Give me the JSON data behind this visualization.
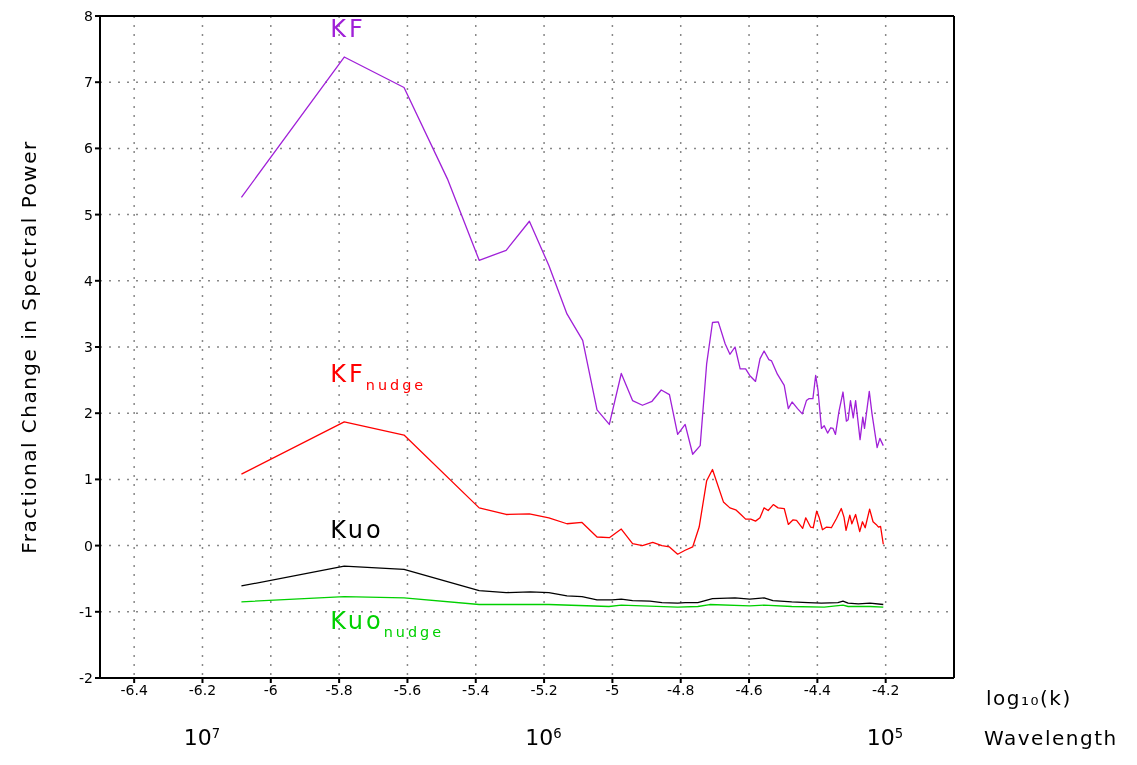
{
  "chart_data": {
    "type": "line",
    "ylabel": "Fractional Change in Spectral Power",
    "xlabel": "log₁₀(k)",
    "x2label": "Wavelength",
    "xlim": [
      -6.5,
      -4.0
    ],
    "xticks": [
      -6.4,
      -6.2,
      -6,
      -5.8,
      -5.6,
      -5.4,
      -5.2,
      -5,
      -4.8,
      -4.6,
      -4.4,
      -4.2
    ],
    "x2lim": [
      19870000,
      62830
    ],
    "x2ticks": [
      {
        "value": 10000000,
        "label": "10$^{7}$"
      },
      {
        "value": 1000000,
        "label": "10$^{6}$"
      },
      {
        "value": 100000,
        "label": "10$^{5}$"
      }
    ],
    "log": "x2",
    "ylim": [
      -2,
      8
    ],
    "yticks": [
      -2,
      -1,
      0,
      1,
      2,
      3,
      4,
      5,
      6,
      7,
      8
    ],
    "grid": true,
    "series": [
      {
        "name": "KF",
        "color": "#a020d8",
        "x": [
          -6.086,
          -5.785,
          -5.61,
          -5.483,
          -5.39,
          -5.311,
          -5.243,
          -5.186,
          -5.133,
          -5.087,
          -5.045,
          -5.009,
          -4.974,
          -4.941,
          -4.912,
          -4.884,
          -4.857,
          -4.833,
          -4.809,
          -4.787,
          -4.765,
          -4.743,
          -4.724,
          -4.707,
          -4.69,
          -4.67,
          -4.656,
          -4.641,
          -4.626,
          -4.61,
          -4.598,
          -4.581,
          -4.568,
          -4.556,
          -4.542,
          -4.534,
          -4.517,
          -4.497,
          -4.485,
          -4.474,
          -4.458,
          -4.444,
          -4.432,
          -4.425,
          -4.413,
          -4.405,
          -4.398,
          -4.388,
          -4.38,
          -4.37,
          -4.361,
          -4.354,
          -4.347,
          -4.337,
          -4.325,
          -4.315,
          -4.31,
          -4.303,
          -4.295,
          -4.288,
          -4.275,
          -4.267,
          -4.262,
          -4.248,
          -4.24,
          -4.225,
          -4.217,
          -4.207
        ],
        "values": [
          5.26,
          7.38,
          6.92,
          5.54,
          4.31,
          4.46,
          4.9,
          4.23,
          3.5,
          3.1,
          2.05,
          1.83,
          2.6,
          2.19,
          2.12,
          2.18,
          2.35,
          2.28,
          1.68,
          1.83,
          1.38,
          1.51,
          2.75,
          3.37,
          3.38,
          3.05,
          2.89,
          3.0,
          2.67,
          2.67,
          2.57,
          2.48,
          2.82,
          2.94,
          2.81,
          2.79,
          2.59,
          2.42,
          2.07,
          2.17,
          2.07,
          1.99,
          2.19,
          2.22,
          2.22,
          2.57,
          2.34,
          1.77,
          1.81,
          1.7,
          1.78,
          1.77,
          1.68,
          2.02,
          2.32,
          1.88,
          1.9,
          2.19,
          1.93,
          2.19,
          1.6,
          1.94,
          1.77,
          2.33,
          1.99,
          1.48,
          1.62,
          1.51
        ]
      },
      {
        "name": "KF$_{nudge}$",
        "color": "#ff0000",
        "x": [
          -6.086,
          -5.785,
          -5.61,
          -5.39,
          -5.311,
          -5.243,
          -5.186,
          -5.133,
          -5.089,
          -5.045,
          -5.009,
          -4.974,
          -4.941,
          -4.912,
          -4.882,
          -4.855,
          -4.833,
          -4.809,
          -4.787,
          -4.765,
          -4.746,
          -4.724,
          -4.707,
          -4.675,
          -4.656,
          -4.639,
          -4.624,
          -4.61,
          -4.595,
          -4.581,
          -4.568,
          -4.556,
          -4.544,
          -4.529,
          -4.515,
          -4.497,
          -4.485,
          -4.471,
          -4.461,
          -4.443,
          -4.434,
          -4.42,
          -4.412,
          -4.402,
          -4.395,
          -4.385,
          -4.373,
          -4.359,
          -4.344,
          -4.33,
          -4.322,
          -4.316,
          -4.305,
          -4.299,
          -4.288,
          -4.276,
          -4.268,
          -4.26,
          -4.247,
          -4.237,
          -4.228,
          -4.221,
          -4.215,
          -4.207
        ],
        "values": [
          1.08,
          1.87,
          1.67,
          0.57,
          0.47,
          0.48,
          0.42,
          0.33,
          0.35,
          0.13,
          0.12,
          0.25,
          0.03,
          0.0,
          0.05,
          0.0,
          -0.02,
          -0.13,
          -0.07,
          -0.02,
          0.28,
          0.98,
          1.15,
          0.66,
          0.57,
          0.54,
          0.47,
          0.4,
          0.4,
          0.37,
          0.42,
          0.57,
          0.53,
          0.62,
          0.57,
          0.56,
          0.32,
          0.39,
          0.38,
          0.26,
          0.42,
          0.28,
          0.27,
          0.52,
          0.43,
          0.24,
          0.28,
          0.27,
          0.41,
          0.56,
          0.43,
          0.23,
          0.46,
          0.33,
          0.47,
          0.21,
          0.36,
          0.27,
          0.55,
          0.36,
          0.32,
          0.28,
          0.29,
          0.02
        ]
      },
      {
        "name": "Kuo",
        "color": "#000000",
        "x": [
          -6.086,
          -5.785,
          -5.61,
          -5.39,
          -5.311,
          -5.24,
          -5.186,
          -5.133,
          -5.089,
          -5.045,
          -5.001,
          -4.974,
          -4.941,
          -4.89,
          -4.855,
          -4.809,
          -4.787,
          -4.75,
          -4.707,
          -4.641,
          -4.598,
          -4.556,
          -4.53,
          -4.475,
          -4.427,
          -4.388,
          -4.34,
          -4.325,
          -4.31,
          -4.28,
          -4.246,
          -4.207
        ],
        "values": [
          -0.61,
          -0.31,
          -0.36,
          -0.68,
          -0.71,
          -0.7,
          -0.71,
          -0.76,
          -0.77,
          -0.82,
          -0.82,
          -0.81,
          -0.83,
          -0.84,
          -0.86,
          -0.87,
          -0.86,
          -0.86,
          -0.8,
          -0.79,
          -0.81,
          -0.79,
          -0.83,
          -0.85,
          -0.86,
          -0.87,
          -0.86,
          -0.84,
          -0.87,
          -0.88,
          -0.87,
          -0.89
        ]
      },
      {
        "name": "Kuo$_{nudge}$",
        "color": "#00d000",
        "x": [
          -6.086,
          -5.785,
          -5.61,
          -5.39,
          -5.186,
          -5.01,
          -4.974,
          -4.809,
          -4.75,
          -4.715,
          -4.598,
          -4.556,
          -4.475,
          -4.38,
          -4.325,
          -4.31,
          -4.246,
          -4.207
        ],
        "values": [
          -0.85,
          -0.77,
          -0.79,
          -0.89,
          -0.89,
          -0.92,
          -0.9,
          -0.93,
          -0.92,
          -0.89,
          -0.91,
          -0.9,
          -0.92,
          -0.93,
          -0.9,
          -0.92,
          -0.92,
          -0.93
        ]
      }
    ]
  }
}
